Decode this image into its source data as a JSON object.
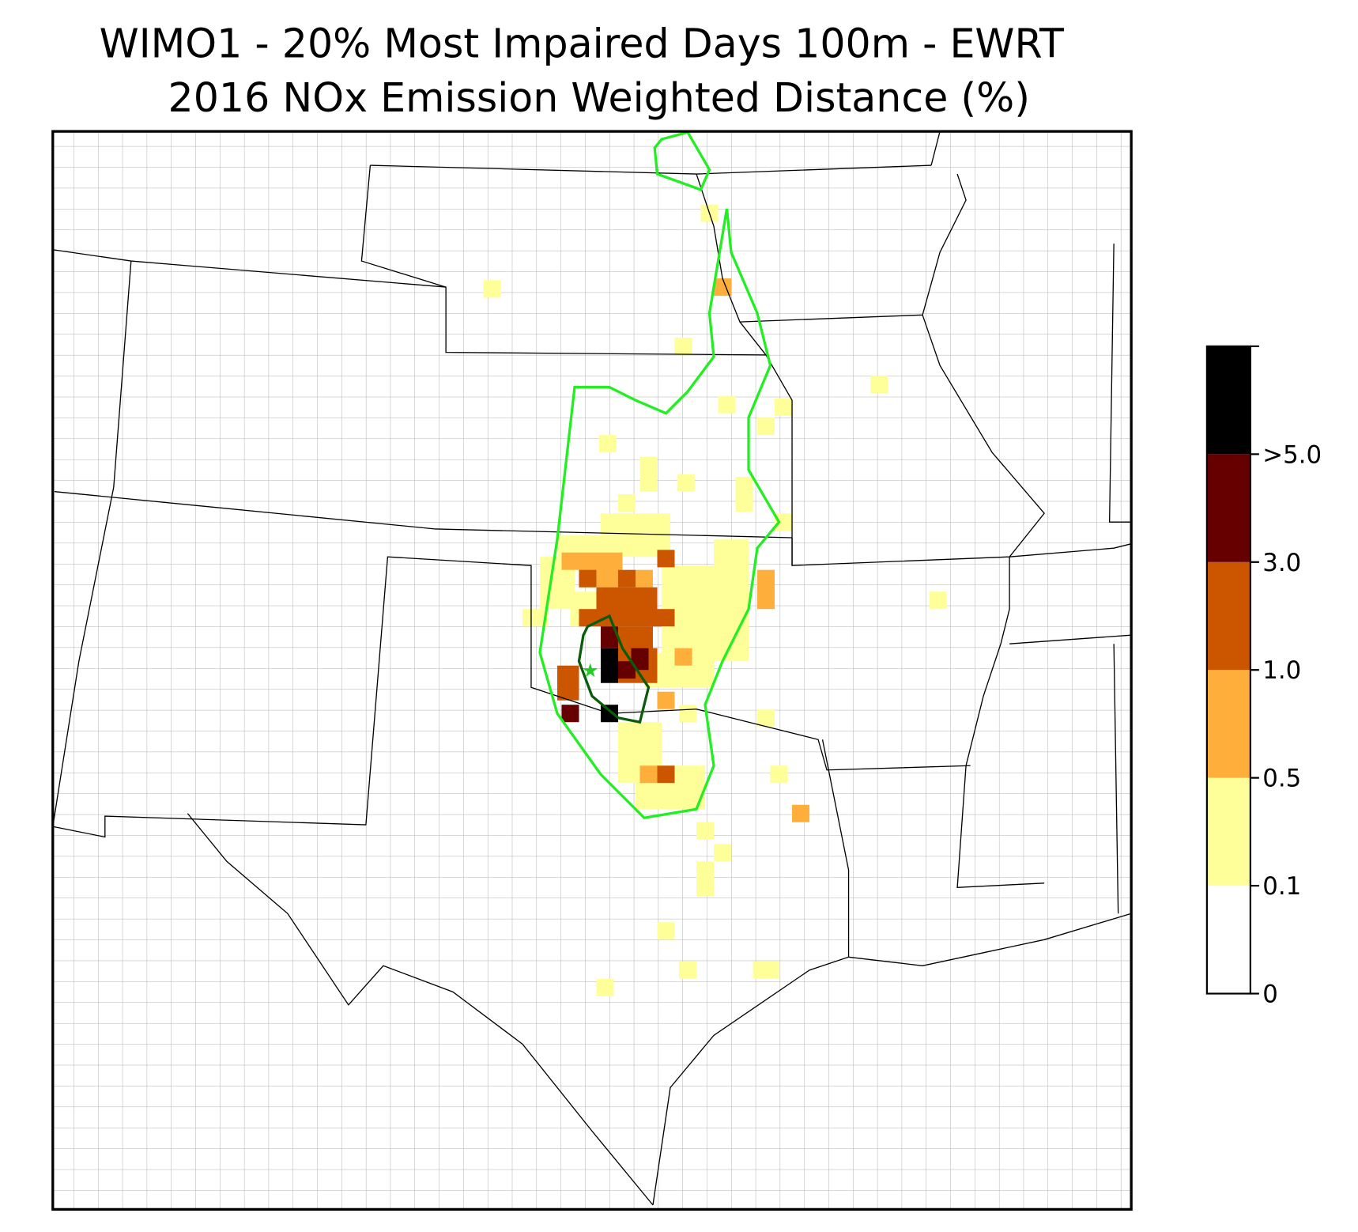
{
  "title": "WIMO1 - 20% Most Impaired Days 100m - EWRT",
  "subtitle": "2016 NOx Emission Weighted Distance (%)",
  "colorbar": {
    "colors": [
      "#ffffff",
      "#ffff99",
      "#fdae3b",
      "#cc5500",
      "#660000",
      "#000000"
    ],
    "ticks": [
      0,
      0.1,
      0.5,
      {
        "value": 1,
        "label": "1.0"
      },
      {
        "value": 3,
        "label": "3.0"
      },
      {
        "value": 5,
        "label": ">5.0"
      }
    ]
  }
}
